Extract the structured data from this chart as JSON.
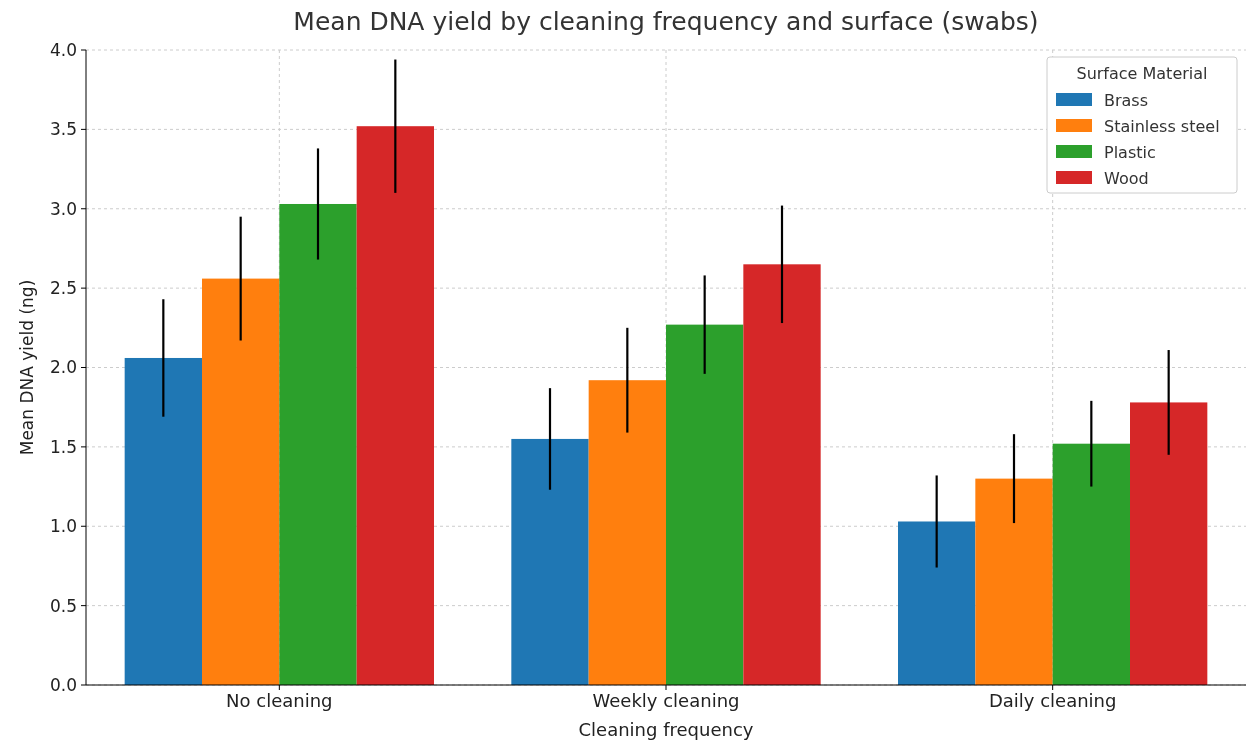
{
  "chart_data": {
    "type": "bar",
    "title": "Mean DNA yield by cleaning frequency and surface (swabs)",
    "xlabel": "Cleaning frequency",
    "ylabel": "Mean DNA yield (ng)",
    "legend_title": "Surface Material",
    "categories": [
      "No cleaning",
      "Weekly cleaning",
      "Daily cleaning"
    ],
    "series": [
      {
        "name": "Brass",
        "color": "#1f77b4",
        "values": [
          2.06,
          1.55,
          1.03
        ],
        "errors": [
          0.37,
          0.32,
          0.29
        ]
      },
      {
        "name": "Stainless steel",
        "color": "#ff7f0e",
        "values": [
          2.56,
          1.92,
          1.3
        ],
        "errors": [
          0.39,
          0.33,
          0.28
        ]
      },
      {
        "name": "Plastic",
        "color": "#2ca02c",
        "values": [
          3.03,
          2.27,
          1.52
        ],
        "errors": [
          0.35,
          0.31,
          0.27
        ]
      },
      {
        "name": "Wood",
        "color": "#d62728",
        "values": [
          3.52,
          2.65,
          1.78
        ],
        "errors": [
          0.42,
          0.37,
          0.33
        ]
      }
    ],
    "ylim": [
      0,
      4
    ],
    "yticks": [
      {
        "value": 0,
        "label": "0.0"
      },
      {
        "value": 0.5,
        "label": "0.5"
      },
      {
        "value": 1,
        "label": "1.0"
      },
      {
        "value": 1.5,
        "label": "1.5"
      },
      {
        "value": 2,
        "label": "2.0"
      },
      {
        "value": 2.5,
        "label": "2.5"
      },
      {
        "value": 3,
        "label": "3.0"
      },
      {
        "value": 3.5,
        "label": "3.5"
      },
      {
        "value": 4,
        "label": "4.0"
      }
    ],
    "grid": true,
    "legend": "top right"
  }
}
